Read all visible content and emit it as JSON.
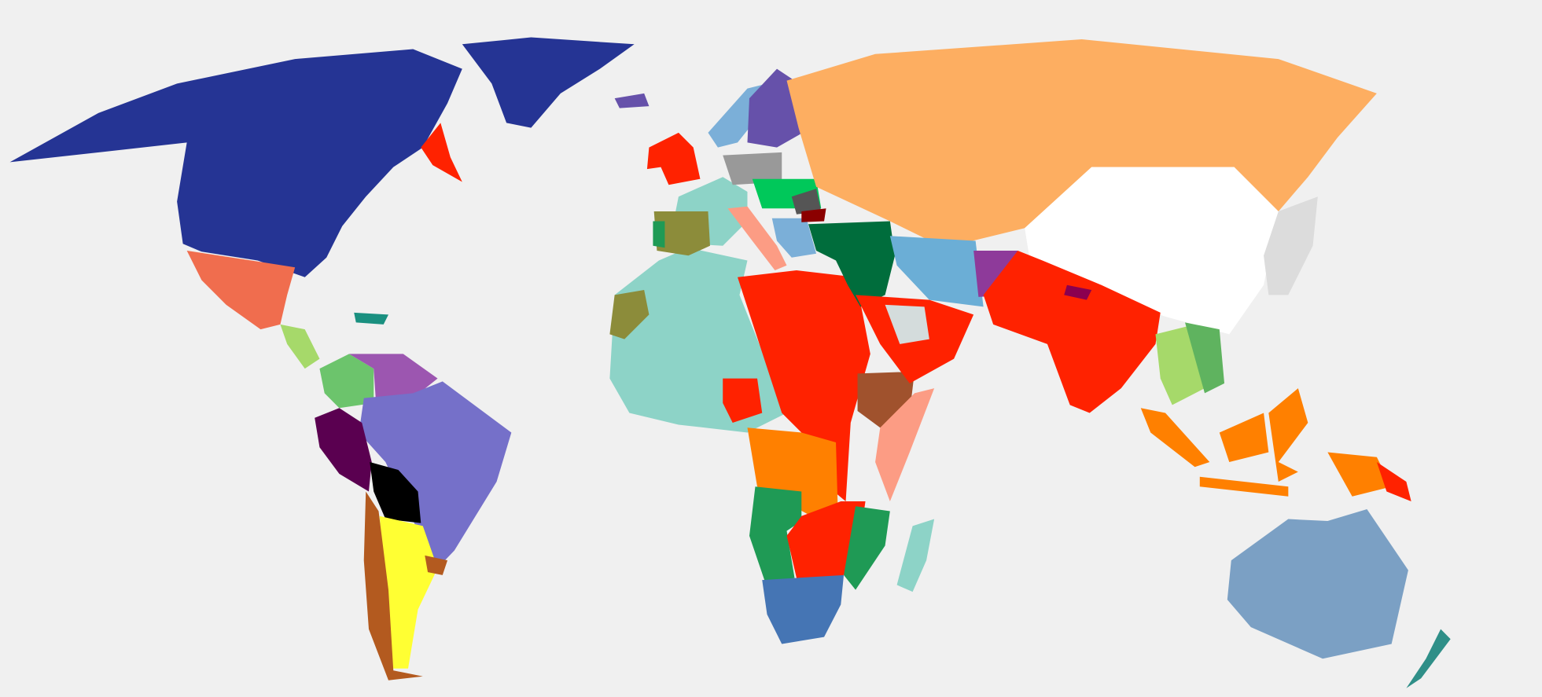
{
  "map": {
    "background": "#f0f0f0",
    "region_colors": {
      "north-america": "#253494",
      "greenland": "#253494",
      "newfoundland": "#ff2200",
      "mexico": "#f06d4e",
      "central-america": "#a6d96a",
      "caribbean": "#1a9080",
      "colombia": "#6cc46c",
      "venezuela-guyana": "#9c56b0",
      "brazil": "#7570c9",
      "peru": "#5a0050",
      "bolivia": "#000000",
      "argentina": "#ffff33",
      "chile": "#b35a1f",
      "uruguay": "#b35a1f",
      "north-africa": "#8dd3c7",
      "west-africa-sahel": "#8c8c3a",
      "nigeria-ghana": "#ff2200",
      "northeast-africa": "#ff2200",
      "central-africa": "#ff8000",
      "southern-africa-green": "#1f9a55",
      "east-africa-red": "#ff2200",
      "south-africa": "#4575b4",
      "ethiopia": "#a0522d",
      "somalia-kenya": "#fc9c84",
      "madagascar": "#8dd3c7",
      "uk-ireland": "#ff2200",
      "scandinavia-west": "#7bafd8",
      "sweden-finland": "#6651aa",
      "iceland": "#6651aa",
      "france-west-europe": "#8dd3c7",
      "iberia": "#8c8c3a",
      "portugal": "#1f9a55",
      "germany": "#999999",
      "poland-ukraine": "#00c85a",
      "italy": "#fc9c84",
      "balkans": "#7bafd8",
      "romania": "#555555",
      "bulgaria": "#8b0000",
      "middle-east": "#006d3c",
      "russia": "#fdae61",
      "china": "#ffffff",
      "east-asia": "#dcdcdc",
      "iran": "#6baed6",
      "arabia": "#ff2200",
      "saudi-inner": "#d4dcdc",
      "afghanistan": "#8e3a9a",
      "south-asia": "#ff2200",
      "nepal": "#8b0050",
      "indochina": "#a6d96a",
      "vietnam": "#5fb35f",
      "indonesia": "#ff8000",
      "papua": "#ff2200",
      "australia": "#7ba0c4",
      "new-zealand": "#2f8f88"
    }
  }
}
